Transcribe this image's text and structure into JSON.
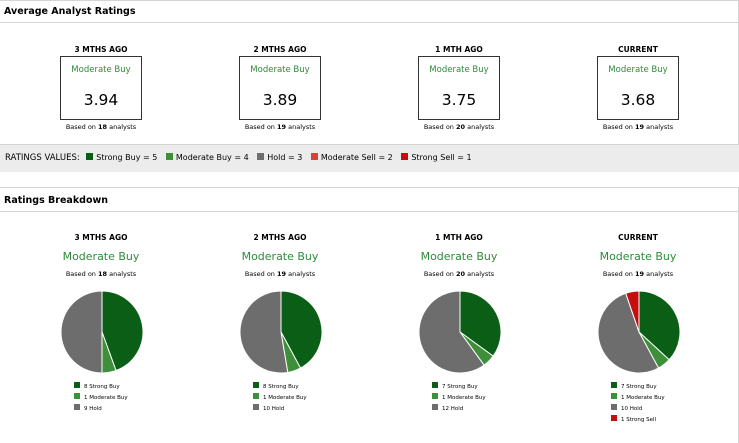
{
  "colors": {
    "strong_buy": "#0b5e16",
    "moderate_buy": "#3d8f3a",
    "hold": "#6d6d6d",
    "moderate_sell": "#d9413c",
    "strong_sell": "#c40f0f",
    "accent_green": "#2e8b3a"
  },
  "avg_panel": {
    "title": "Average Analyst Ratings",
    "columns": [
      {
        "period": "3 MTHS AGO",
        "label": "Moderate Buy",
        "value": "3.94",
        "based_prefix": "Based on ",
        "count": "18",
        "based_suffix": " analysts"
      },
      {
        "period": "2 MTHS AGO",
        "label": "Moderate Buy",
        "value": "3.89",
        "based_prefix": "Based on ",
        "count": "19",
        "based_suffix": " analysts"
      },
      {
        "period": "1 MTH AGO",
        "label": "Moderate Buy",
        "value": "3.75",
        "based_prefix": "Based on ",
        "count": "20",
        "based_suffix": " analysts"
      },
      {
        "period": "CURRENT",
        "label": "Moderate Buy",
        "value": "3.68",
        "based_prefix": "Based on ",
        "count": "19",
        "based_suffix": " analysts"
      }
    ]
  },
  "ratings_values": {
    "title": "RATINGS VALUES:",
    "items": [
      "Strong Buy = 5",
      "Moderate Buy = 4",
      "Hold = 3",
      "Moderate Sell = 2",
      "Strong Sell = 1"
    ]
  },
  "breakdown_panel": {
    "title": "Ratings Breakdown",
    "columns": [
      {
        "period": "3 MTHS AGO",
        "label": "Moderate Buy",
        "based_prefix": "Based on ",
        "count": "18",
        "based_suffix": " analysts",
        "legend": [
          "8 Strong Buy",
          "1 Moderate Buy",
          "9 Hold"
        ]
      },
      {
        "period": "2 MTHS AGO",
        "label": "Moderate Buy",
        "based_prefix": "Based on ",
        "count": "19",
        "based_suffix": " analysts",
        "legend": [
          "8 Strong Buy",
          "1 Moderate Buy",
          "10 Hold"
        ]
      },
      {
        "period": "1 MTH AGO",
        "label": "Moderate Buy",
        "based_prefix": "Based on ",
        "count": "20",
        "based_suffix": " analysts",
        "legend": [
          "7 Strong Buy",
          "1 Moderate Buy",
          "12 Hold"
        ]
      },
      {
        "period": "CURRENT",
        "label": "Moderate Buy",
        "based_prefix": "Based on ",
        "count": "19",
        "based_suffix": " analysts",
        "legend": [
          "7 Strong Buy",
          "1 Moderate Buy",
          "10 Hold",
          "1 Strong Sell"
        ]
      }
    ]
  },
  "chart_data": [
    {
      "type": "pie",
      "title": "3 MTHS AGO",
      "categories": [
        "Strong Buy",
        "Moderate Buy",
        "Hold"
      ],
      "values": [
        8,
        1,
        9
      ]
    },
    {
      "type": "pie",
      "title": "2 MTHS AGO",
      "categories": [
        "Strong Buy",
        "Moderate Buy",
        "Hold"
      ],
      "values": [
        8,
        1,
        10
      ]
    },
    {
      "type": "pie",
      "title": "1 MTH AGO",
      "categories": [
        "Strong Buy",
        "Moderate Buy",
        "Hold"
      ],
      "values": [
        7,
        1,
        12
      ]
    },
    {
      "type": "pie",
      "title": "CURRENT",
      "categories": [
        "Strong Buy",
        "Moderate Buy",
        "Hold",
        "Strong Sell"
      ],
      "values": [
        7,
        1,
        10,
        1
      ]
    }
  ]
}
